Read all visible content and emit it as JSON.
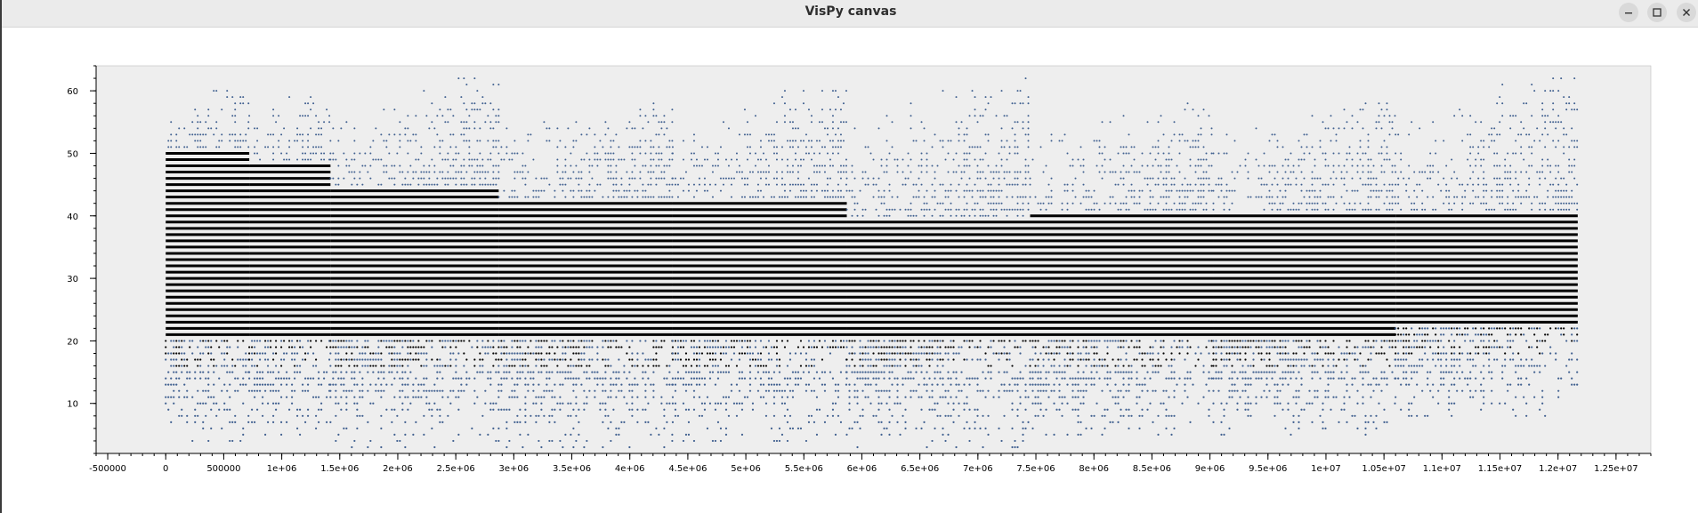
{
  "window": {
    "title": "VisPy canvas",
    "minimize_icon": "minimize-icon",
    "maximize_icon": "maximize-icon",
    "close_icon": "close-icon"
  },
  "colors": {
    "plot_background": "#eeeeee",
    "marker_dense": "#000000",
    "marker_sparse": "#3f5f8f",
    "axis": "#000000"
  },
  "chart_data": {
    "type": "scatter",
    "title": "",
    "xlabel": "",
    "ylabel": "",
    "xlim": [
      -600000,
      12800000
    ],
    "ylim": [
      2,
      64
    ],
    "grid": false,
    "x_ticks": [
      {
        "value": -500000,
        "label": "-500000"
      },
      {
        "value": 0,
        "label": "0"
      },
      {
        "value": 500000,
        "label": "500000"
      },
      {
        "value": 1000000,
        "label": "1e+06"
      },
      {
        "value": 1500000,
        "label": "1.5e+06"
      },
      {
        "value": 2000000,
        "label": "2e+06"
      },
      {
        "value": 2500000,
        "label": "2.5e+06"
      },
      {
        "value": 3000000,
        "label": "3e+06"
      },
      {
        "value": 3500000,
        "label": "3.5e+06"
      },
      {
        "value": 4000000,
        "label": "4e+06"
      },
      {
        "value": 4500000,
        "label": "4.5e+06"
      },
      {
        "value": 5000000,
        "label": "5e+06"
      },
      {
        "value": 5500000,
        "label": "5.5e+06"
      },
      {
        "value": 6000000,
        "label": "6e+06"
      },
      {
        "value": 6500000,
        "label": "6.5e+06"
      },
      {
        "value": 7000000,
        "label": "7e+06"
      },
      {
        "value": 7500000,
        "label": "7.5e+06"
      },
      {
        "value": 8000000,
        "label": "8e+06"
      },
      {
        "value": 8500000,
        "label": "8.5e+06"
      },
      {
        "value": 9000000,
        "label": "9e+06"
      },
      {
        "value": 9500000,
        "label": "9.5e+06"
      },
      {
        "value": 10000000,
        "label": "1e+07"
      },
      {
        "value": 10500000,
        "label": "1.05e+07"
      },
      {
        "value": 11000000,
        "label": "1.1e+07"
      },
      {
        "value": 11500000,
        "label": "1.15e+07"
      },
      {
        "value": 12000000,
        "label": "1.2e+07"
      },
      {
        "value": 12500000,
        "label": "1.25e+07"
      }
    ],
    "y_ticks": [
      {
        "value": 10,
        "label": "10"
      },
      {
        "value": 20,
        "label": "20"
      },
      {
        "value": 30,
        "label": "30"
      },
      {
        "value": 40,
        "label": "40"
      },
      {
        "value": 50,
        "label": "50"
      },
      {
        "value": 60,
        "label": "60"
      }
    ],
    "series": [
      {
        "points_x_range": [
          0,
          12170000
        ],
        "segments": [
          {
            "x_start": 0,
            "x_end": 720000,
            "dense_min": 21,
            "dense_max": 50,
            "sparse_min": 4,
            "sparse_max": 60
          },
          {
            "x_start": 720000,
            "x_end": 1420000,
            "dense_min": 21,
            "dense_max": 48,
            "sparse_min": 5,
            "sparse_max": 60
          },
          {
            "x_start": 1420000,
            "x_end": 2870000,
            "dense_min": 21,
            "dense_max": 44,
            "sparse_min": 3,
            "sparse_max": 62
          },
          {
            "x_start": 2870000,
            "x_end": 4370000,
            "dense_min": 21,
            "dense_max": 42,
            "sparse_min": 3,
            "sparse_max": 58
          },
          {
            "x_start": 4370000,
            "x_end": 5870000,
            "dense_min": 21,
            "dense_max": 42,
            "sparse_min": 4,
            "sparse_max": 60
          },
          {
            "x_start": 5870000,
            "x_end": 7450000,
            "dense_min": 21,
            "dense_max": 39,
            "sparse_min": 3,
            "sparse_max": 62
          },
          {
            "x_start": 7450000,
            "x_end": 9030000,
            "dense_min": 21,
            "dense_max": 40,
            "sparse_min": 5,
            "sparse_max": 58
          },
          {
            "x_start": 9030000,
            "x_end": 10600000,
            "dense_min": 21,
            "dense_max": 40,
            "sparse_min": 5,
            "sparse_max": 58
          },
          {
            "x_start": 10600000,
            "x_end": 12170000,
            "dense_min": 23,
            "dense_max": 40,
            "sparse_min": 8,
            "sparse_max": 62
          }
        ]
      }
    ]
  }
}
